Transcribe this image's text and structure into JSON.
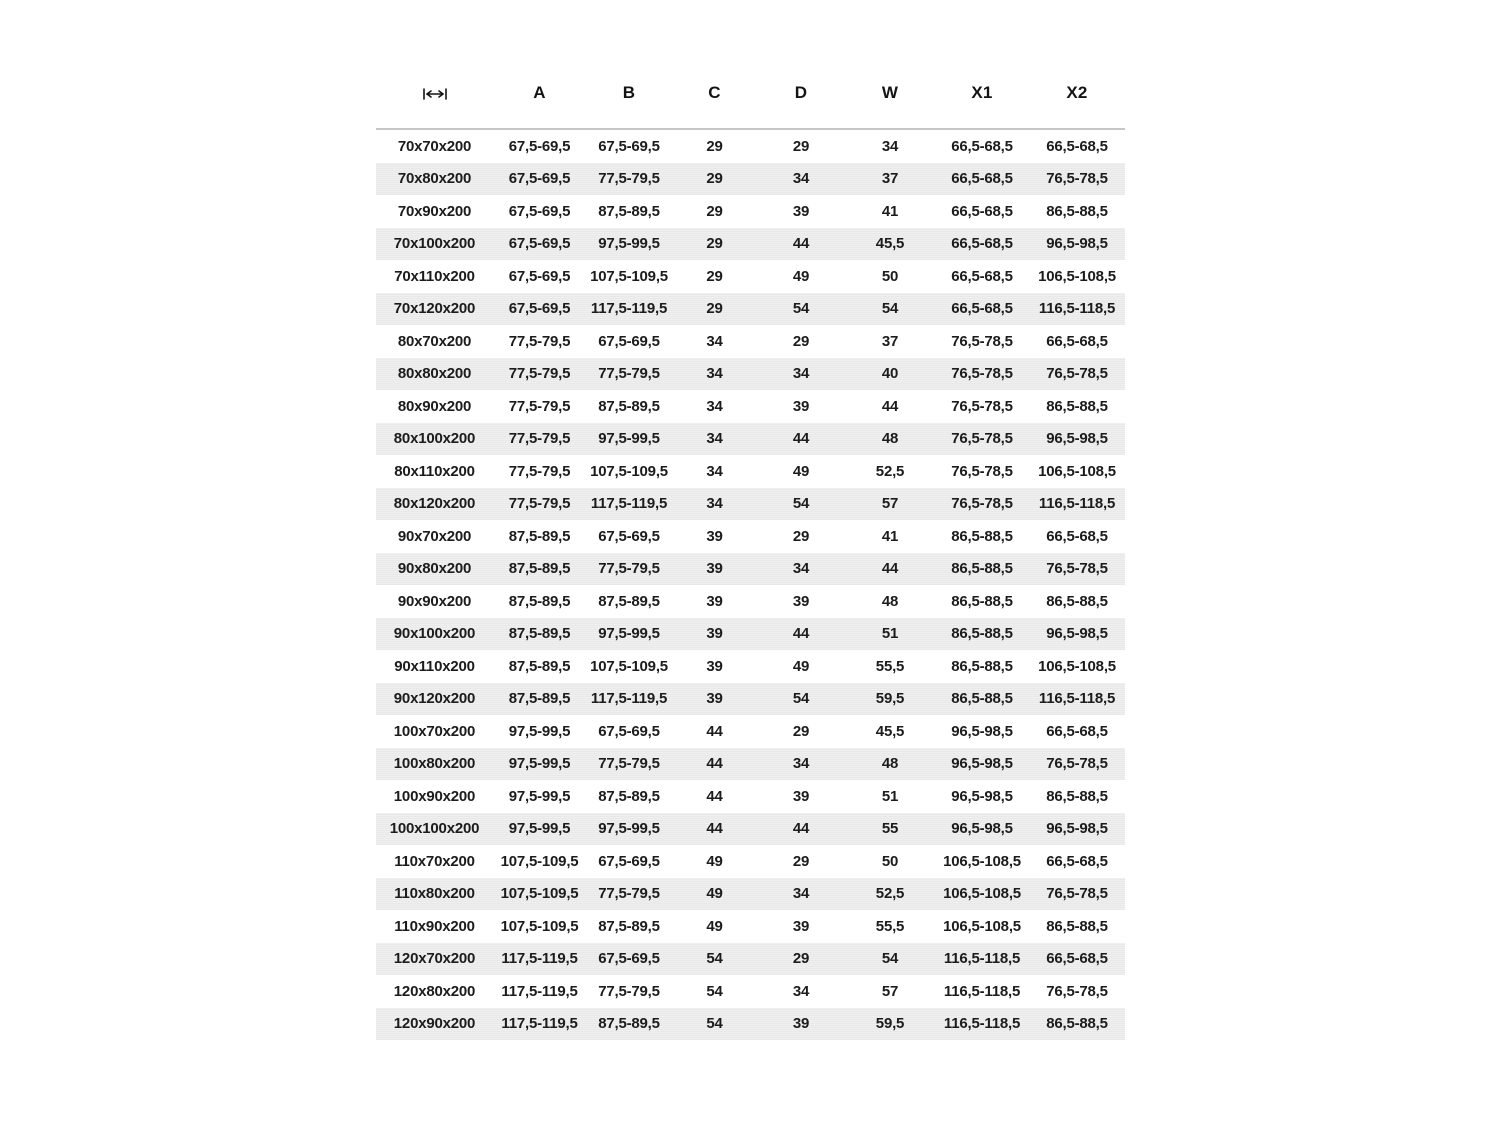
{
  "page": {
    "background_color": "#ffffff",
    "text_color": "#1c1c1c",
    "stripe_color": "#ececec",
    "header_separator_color": "#c6c6c6"
  },
  "table": {
    "header": {
      "size_column_icon": "horizontal-dimension-icon",
      "columns": [
        "A",
        "B",
        "C",
        "D",
        "W",
        "X1",
        "X2"
      ]
    },
    "rows": [
      [
        "70x70x200",
        "67,5-69,5",
        "67,5-69,5",
        "29",
        "29",
        "34",
        "66,5-68,5",
        "66,5-68,5"
      ],
      [
        "70x80x200",
        "67,5-69,5",
        "77,5-79,5",
        "29",
        "34",
        "37",
        "66,5-68,5",
        "76,5-78,5"
      ],
      [
        "70x90x200",
        "67,5-69,5",
        "87,5-89,5",
        "29",
        "39",
        "41",
        "66,5-68,5",
        "86,5-88,5"
      ],
      [
        "70x100x200",
        "67,5-69,5",
        "97,5-99,5",
        "29",
        "44",
        "45,5",
        "66,5-68,5",
        "96,5-98,5"
      ],
      [
        "70x110x200",
        "67,5-69,5",
        "107,5-109,5",
        "29",
        "49",
        "50",
        "66,5-68,5",
        "106,5-108,5"
      ],
      [
        "70x120x200",
        "67,5-69,5",
        "117,5-119,5",
        "29",
        "54",
        "54",
        "66,5-68,5",
        "116,5-118,5"
      ],
      [
        "80x70x200",
        "77,5-79,5",
        "67,5-69,5",
        "34",
        "29",
        "37",
        "76,5-78,5",
        "66,5-68,5"
      ],
      [
        "80x80x200",
        "77,5-79,5",
        "77,5-79,5",
        "34",
        "34",
        "40",
        "76,5-78,5",
        "76,5-78,5"
      ],
      [
        "80x90x200",
        "77,5-79,5",
        "87,5-89,5",
        "34",
        "39",
        "44",
        "76,5-78,5",
        "86,5-88,5"
      ],
      [
        "80x100x200",
        "77,5-79,5",
        "97,5-99,5",
        "34",
        "44",
        "48",
        "76,5-78,5",
        "96,5-98,5"
      ],
      [
        "80x110x200",
        "77,5-79,5",
        "107,5-109,5",
        "34",
        "49",
        "52,5",
        "76,5-78,5",
        "106,5-108,5"
      ],
      [
        "80x120x200",
        "77,5-79,5",
        "117,5-119,5",
        "34",
        "54",
        "57",
        "76,5-78,5",
        "116,5-118,5"
      ],
      [
        "90x70x200",
        "87,5-89,5",
        "67,5-69,5",
        "39",
        "29",
        "41",
        "86,5-88,5",
        "66,5-68,5"
      ],
      [
        "90x80x200",
        "87,5-89,5",
        "77,5-79,5",
        "39",
        "34",
        "44",
        "86,5-88,5",
        "76,5-78,5"
      ],
      [
        "90x90x200",
        "87,5-89,5",
        "87,5-89,5",
        "39",
        "39",
        "48",
        "86,5-88,5",
        "86,5-88,5"
      ],
      [
        "90x100x200",
        "87,5-89,5",
        "97,5-99,5",
        "39",
        "44",
        "51",
        "86,5-88,5",
        "96,5-98,5"
      ],
      [
        "90x110x200",
        "87,5-89,5",
        "107,5-109,5",
        "39",
        "49",
        "55,5",
        "86,5-88,5",
        "106,5-108,5"
      ],
      [
        "90x120x200",
        "87,5-89,5",
        "117,5-119,5",
        "39",
        "54",
        "59,5",
        "86,5-88,5",
        "116,5-118,5"
      ],
      [
        "100x70x200",
        "97,5-99,5",
        "67,5-69,5",
        "44",
        "29",
        "45,5",
        "96,5-98,5",
        "66,5-68,5"
      ],
      [
        "100x80x200",
        "97,5-99,5",
        "77,5-79,5",
        "44",
        "34",
        "48",
        "96,5-98,5",
        "76,5-78,5"
      ],
      [
        "100x90x200",
        "97,5-99,5",
        "87,5-89,5",
        "44",
        "39",
        "51",
        "96,5-98,5",
        "86,5-88,5"
      ],
      [
        "100x100x200",
        "97,5-99,5",
        "97,5-99,5",
        "44",
        "44",
        "55",
        "96,5-98,5",
        "96,5-98,5"
      ],
      [
        "110x70x200",
        "107,5-109,5",
        "67,5-69,5",
        "49",
        "29",
        "50",
        "106,5-108,5",
        "66,5-68,5"
      ],
      [
        "110x80x200",
        "107,5-109,5",
        "77,5-79,5",
        "49",
        "34",
        "52,5",
        "106,5-108,5",
        "76,5-78,5"
      ],
      [
        "110x90x200",
        "107,5-109,5",
        "87,5-89,5",
        "49",
        "39",
        "55,5",
        "106,5-108,5",
        "86,5-88,5"
      ],
      [
        "120x70x200",
        "117,5-119,5",
        "67,5-69,5",
        "54",
        "29",
        "54",
        "116,5-118,5",
        "66,5-68,5"
      ],
      [
        "120x80x200",
        "117,5-119,5",
        "77,5-79,5",
        "54",
        "34",
        "57",
        "116,5-118,5",
        "76,5-78,5"
      ],
      [
        "120x90x200",
        "117,5-119,5",
        "87,5-89,5",
        "54",
        "39",
        "59,5",
        "116,5-118,5",
        "86,5-88,5"
      ]
    ]
  }
}
